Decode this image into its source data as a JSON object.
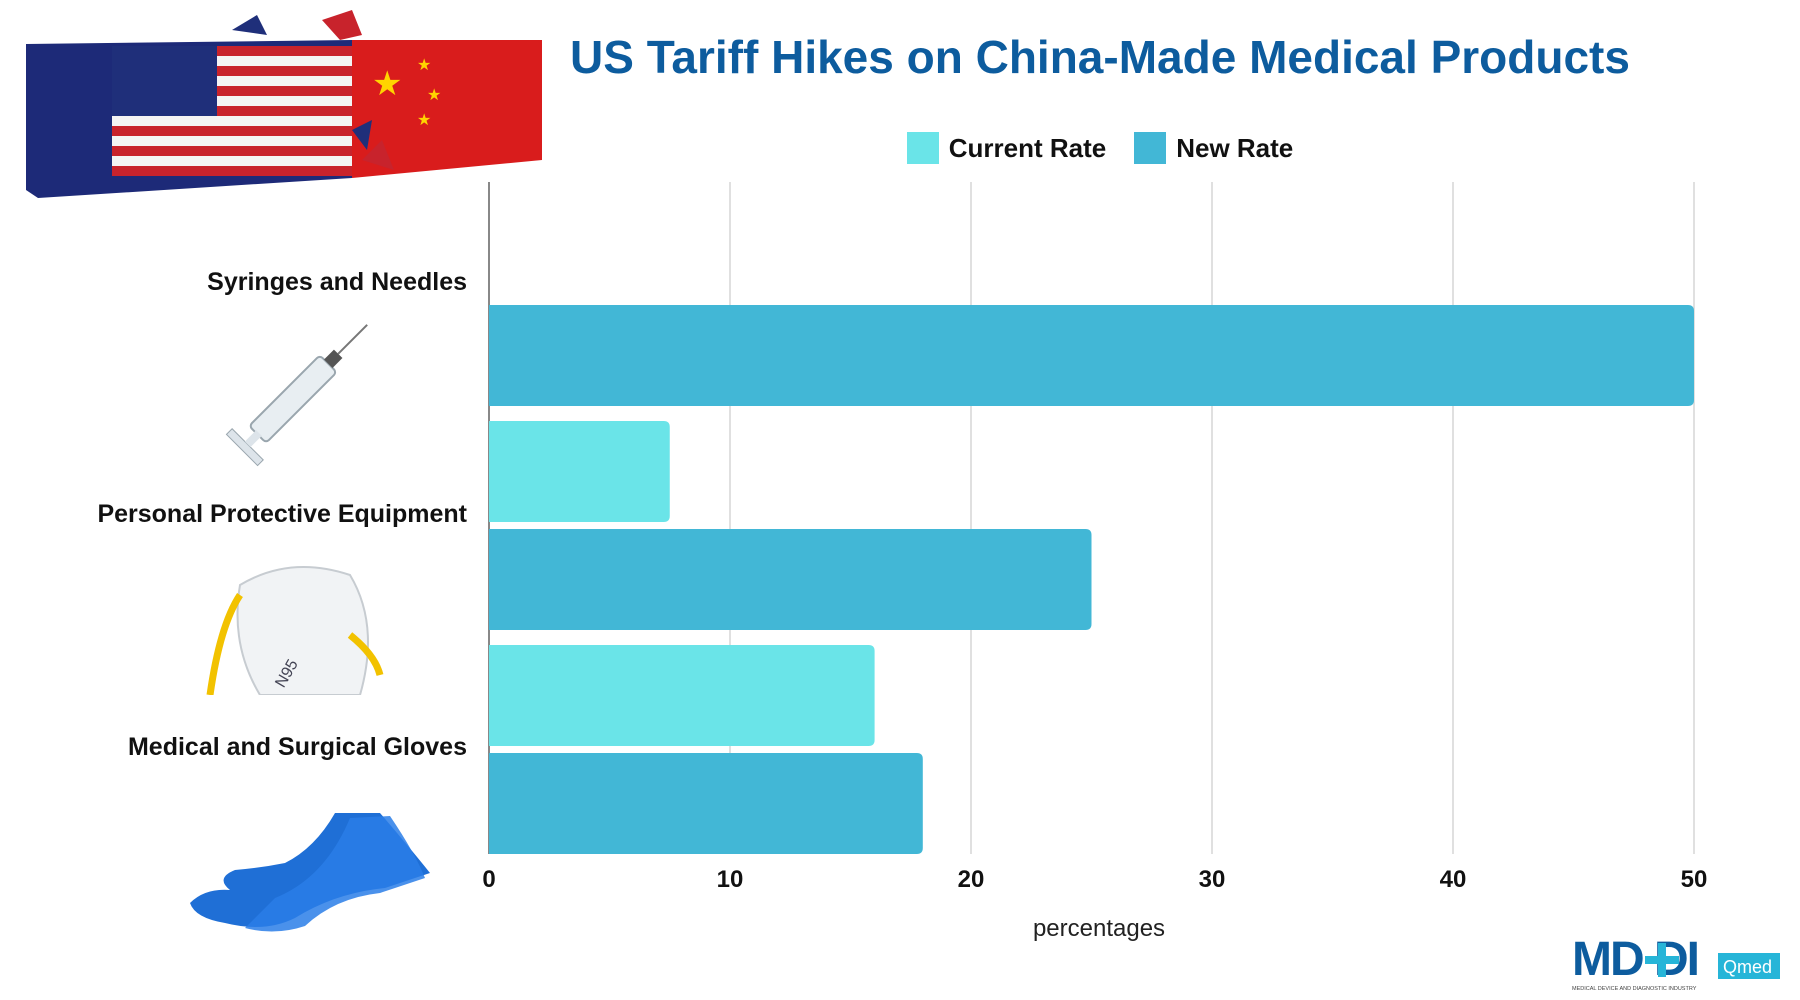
{
  "chart_data": {
    "type": "bar",
    "orientation": "horizontal",
    "title": "US Tariff Hikes on China-Made Medical Products",
    "xlabel": "percentages",
    "ylabel": "",
    "categories": [
      "Syringes and Needles",
      "Personal Protective Equipment",
      "Medical and Surgical Gloves"
    ],
    "series": [
      {
        "name": "Current Rate",
        "values": [
          0,
          7.5,
          16
        ],
        "color": "#6ae4e8"
      },
      {
        "name": "New Rate",
        "values": [
          50,
          25,
          18
        ],
        "color": "#42b7d6"
      }
    ],
    "xlim": [
      0,
      50
    ],
    "xticks": [
      "0",
      "10",
      "20",
      "30",
      "40",
      "50"
    ],
    "grid": true,
    "legend": "top"
  },
  "logo": {
    "text": "MD+DI",
    "badge": "Qmed",
    "tagline": "MEDICAL DEVICE AND DIAGNOSTIC INDUSTRY"
  },
  "images": [
    "shipping-containers-us-china-flags",
    "syringe",
    "n95-mask",
    "blue-gloves"
  ],
  "colors": {
    "title": "#0d5c9e",
    "current": "#6ae4e8",
    "new": "#42b7d6"
  }
}
